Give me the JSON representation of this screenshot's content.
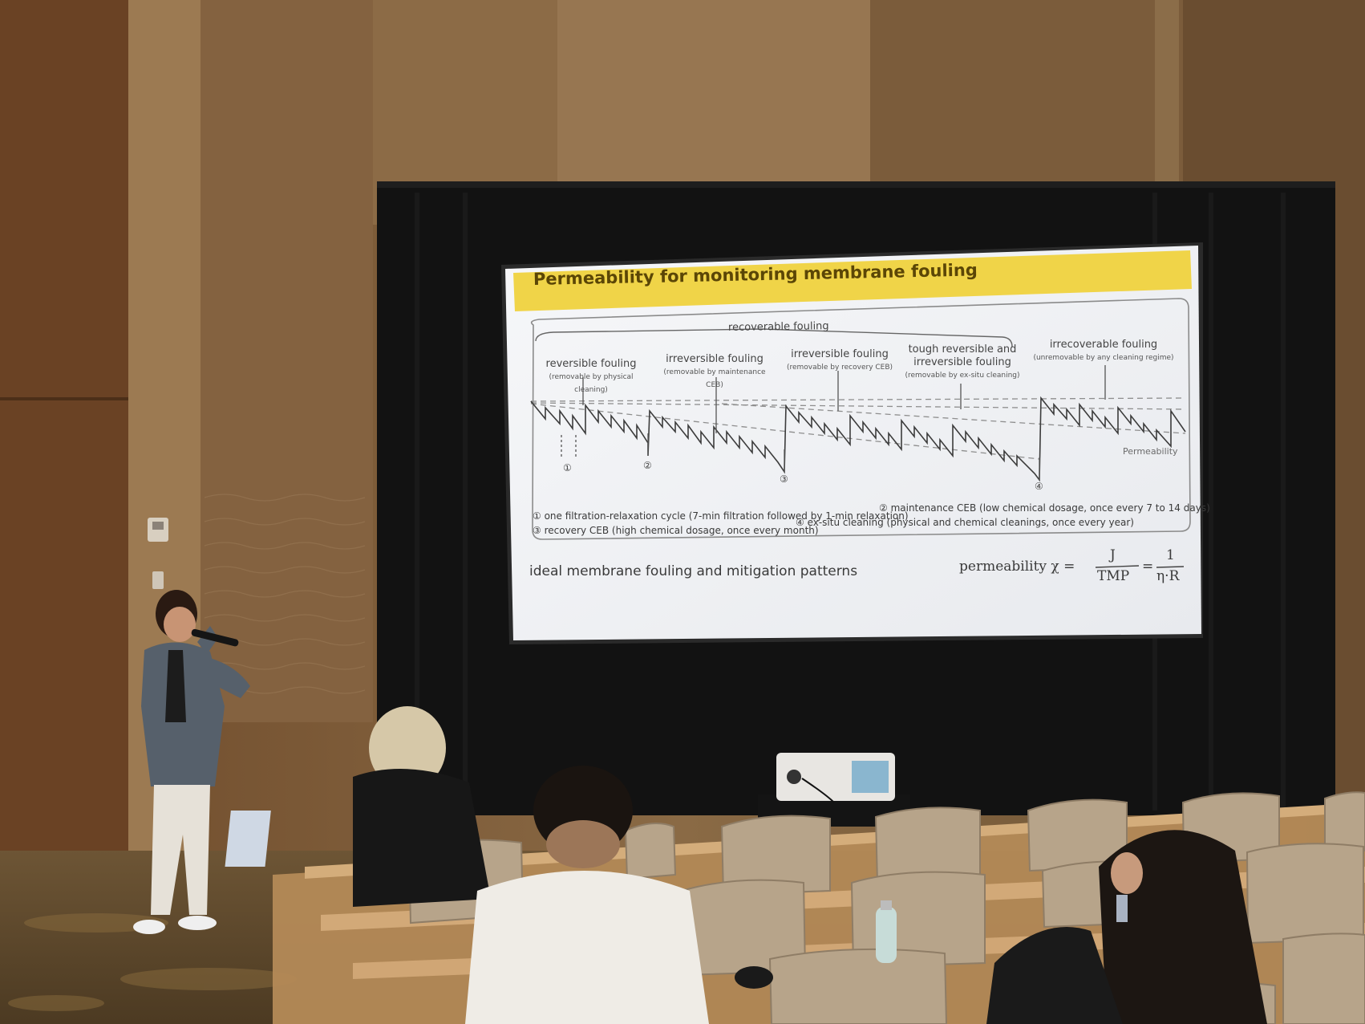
{
  "slide": {
    "title": "Permeability for monitoring membrane fouling",
    "bracket_label": "recoverable fouling",
    "labels": [
      {
        "title": "reversible fouling",
        "sub": "(removable by physical cleaning)"
      },
      {
        "title": "irreversible fouling",
        "sub": "(removable by maintenance CEB)"
      },
      {
        "title": "irreversible fouling",
        "sub": "(removable by recovery CEB)"
      },
      {
        "title": "tough reversible and irreversible fouling",
        "sub": "(removable by ex-situ cleaning)"
      },
      {
        "title": "irrecoverable fouling",
        "sub": "(unremovable by any cleaning regime)"
      }
    ],
    "axis_label": "Permeability",
    "markers": [
      "①",
      "②",
      "③",
      "④"
    ],
    "legend": [
      "①  one filtration-relaxation cycle (7-min filtration followed by 1-min relaxation)",
      "②  maintenance CEB (low chemical dosage, once every 7 to 14 days)",
      "③  recovery CEB (high chemical dosage, once every month)",
      "④  ex-situ cleaning (physical and chemical cleanings, once every year)"
    ],
    "caption": "ideal membrane fouling and mitigation patterns",
    "formula_lhs": "permeability  χ  =",
    "formula_frac1_num": "J",
    "formula_frac1_den": "TMP",
    "formula_eq": "=",
    "formula_frac2_num": "1",
    "formula_frac2_den": "η·R"
  },
  "colors": {
    "wall": "#7a5a38",
    "screen_bg": "#f2f3f5",
    "title_band": "#f3d64a",
    "curtain": "#141414",
    "chair": "#b8a58a",
    "table_cloth": "#c9a070"
  }
}
